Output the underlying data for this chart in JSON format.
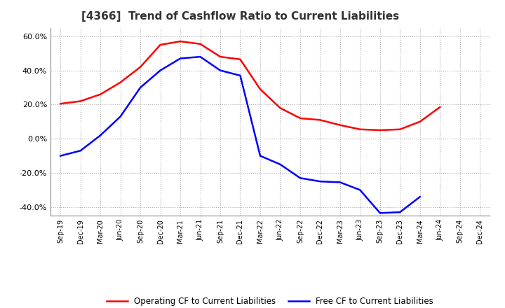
{
  "title": "[4366]  Trend of Cashflow Ratio to Current Liabilities",
  "x_labels": [
    "Sep-19",
    "Dec-19",
    "Mar-20",
    "Jun-20",
    "Sep-20",
    "Dec-20",
    "Mar-21",
    "Jun-21",
    "Sep-21",
    "Dec-21",
    "Mar-22",
    "Jun-22",
    "Sep-22",
    "Dec-22",
    "Mar-23",
    "Jun-23",
    "Sep-23",
    "Dec-23",
    "Mar-24",
    "Jun-24",
    "Sep-24",
    "Dec-24"
  ],
  "operating_cf": [
    20.5,
    22.0,
    26.0,
    33.0,
    42.0,
    55.0,
    57.0,
    55.5,
    48.0,
    46.5,
    29.0,
    18.0,
    12.0,
    11.0,
    8.0,
    5.5,
    5.0,
    5.5,
    10.0,
    18.5,
    null,
    null
  ],
  "free_cf": [
    -10.0,
    -7.0,
    2.0,
    13.0,
    30.0,
    40.0,
    47.0,
    48.0,
    40.0,
    37.0,
    -10.0,
    -15.0,
    -23.0,
    -25.0,
    -25.5,
    -30.0,
    -43.5,
    -43.0,
    -34.0,
    null,
    null,
    null
  ],
  "operating_color": "#ff0000",
  "free_color": "#0000ff",
  "ylim": [
    -45,
    65
  ],
  "yticks": [
    -40.0,
    -20.0,
    0.0,
    20.0,
    40.0,
    60.0
  ],
  "background_color": "#ffffff",
  "grid_color": "#aaaaaa",
  "title_fontsize": 11,
  "legend_labels": [
    "Operating CF to Current Liabilities",
    "Free CF to Current Liabilities"
  ]
}
